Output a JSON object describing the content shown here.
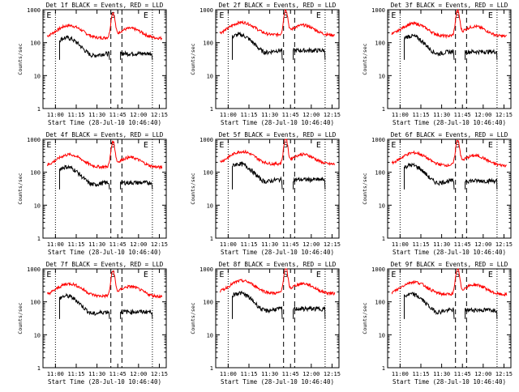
{
  "chart_data": [
    {
      "type": "line",
      "title": "Det 1f BLACK = Events, RED = LLD",
      "xlabel": "Start Time (28-Jul-10 10:46:40)",
      "ylabel": "Counts/sec",
      "series": [
        {
          "name": "Events",
          "color": "#000000"
        },
        {
          "name": "LLD",
          "color": "#ff0000"
        }
      ]
    },
    {
      "type": "line",
      "title": "Det 2f BLACK = Events, RED = LLD",
      "xlabel": "Start Time (28-Jul-10 10:46:40)",
      "ylabel": "Counts/sec",
      "series": [
        {
          "name": "Events",
          "color": "#000000"
        },
        {
          "name": "LLD",
          "color": "#ff0000"
        }
      ]
    },
    {
      "type": "line",
      "title": "Det 3f BLACK = Events, RED = LLD",
      "xlabel": "Start Time (28-Jul-10 10:46:40)",
      "ylabel": "Counts/sec",
      "series": [
        {
          "name": "Events",
          "color": "#000000"
        },
        {
          "name": "LLD",
          "color": "#ff0000"
        }
      ]
    },
    {
      "type": "line",
      "title": "Det 4f BLACK = Events, RED = LLD",
      "xlabel": "Start Time (28-Jul-10 10:46:40)",
      "ylabel": "Counts/sec",
      "series": [
        {
          "name": "Events",
          "color": "#000000"
        },
        {
          "name": "LLD",
          "color": "#ff0000"
        }
      ]
    },
    {
      "type": "line",
      "title": "Det 5f BLACK = Events, RED = LLD",
      "xlabel": "Start Time (28-Jul-10 10:46:40)",
      "ylabel": "Counts/sec",
      "series": [
        {
          "name": "Events",
          "color": "#000000"
        },
        {
          "name": "LLD",
          "color": "#ff0000"
        }
      ]
    },
    {
      "type": "line",
      "title": "Det 6f BLACK = Events, RED = LLD",
      "xlabel": "Start Time (28-Jul-10 10:46:40)",
      "ylabel": "Counts/sec",
      "series": [
        {
          "name": "Events",
          "color": "#000000"
        },
        {
          "name": "LLD",
          "color": "#ff0000"
        }
      ]
    },
    {
      "type": "line",
      "title": "Det 7f BLACK = Events, RED = LLD",
      "xlabel": "Start Time (28-Jul-10 10:46:40)",
      "ylabel": "Counts/sec",
      "series": [
        {
          "name": "Events",
          "color": "#000000"
        },
        {
          "name": "LLD",
          "color": "#ff0000"
        }
      ]
    },
    {
      "type": "line",
      "title": "Det 8f BLACK = Events, RED = LLD",
      "xlabel": "Start Time (28-Jul-10 10:46:40)",
      "ylabel": "Counts/sec",
      "series": [
        {
          "name": "Events",
          "color": "#000000"
        },
        {
          "name": "LLD",
          "color": "#ff0000"
        }
      ]
    },
    {
      "type": "line",
      "title": "Det 9f BLACK = Events, RED = LLD",
      "xlabel": "Start Time (28-Jul-10 10:46:40)",
      "ylabel": "Counts/sec",
      "series": [
        {
          "name": "Events",
          "color": "#000000"
        },
        {
          "name": "LLD",
          "color": "#ff0000"
        }
      ]
    }
  ],
  "axes": {
    "xticks": [
      "11:00",
      "11:15",
      "11:30",
      "11:45",
      "12:00",
      "12:15"
    ],
    "yticks": [
      "1",
      "10",
      "100",
      "1000"
    ],
    "yscale": "log",
    "ylim": [
      1,
      1000
    ],
    "xlim_minutes_after_1030": [
      21,
      110
    ]
  },
  "markers": {
    "dotted_times": [
      "11:00",
      "12:10"
    ],
    "dashed_times": [
      "11:40",
      "11:48"
    ],
    "labels": [
      "E",
      "S",
      "E"
    ]
  },
  "colors": {
    "events": "#000000",
    "lld": "#ff0000",
    "background": "#ffffff"
  }
}
